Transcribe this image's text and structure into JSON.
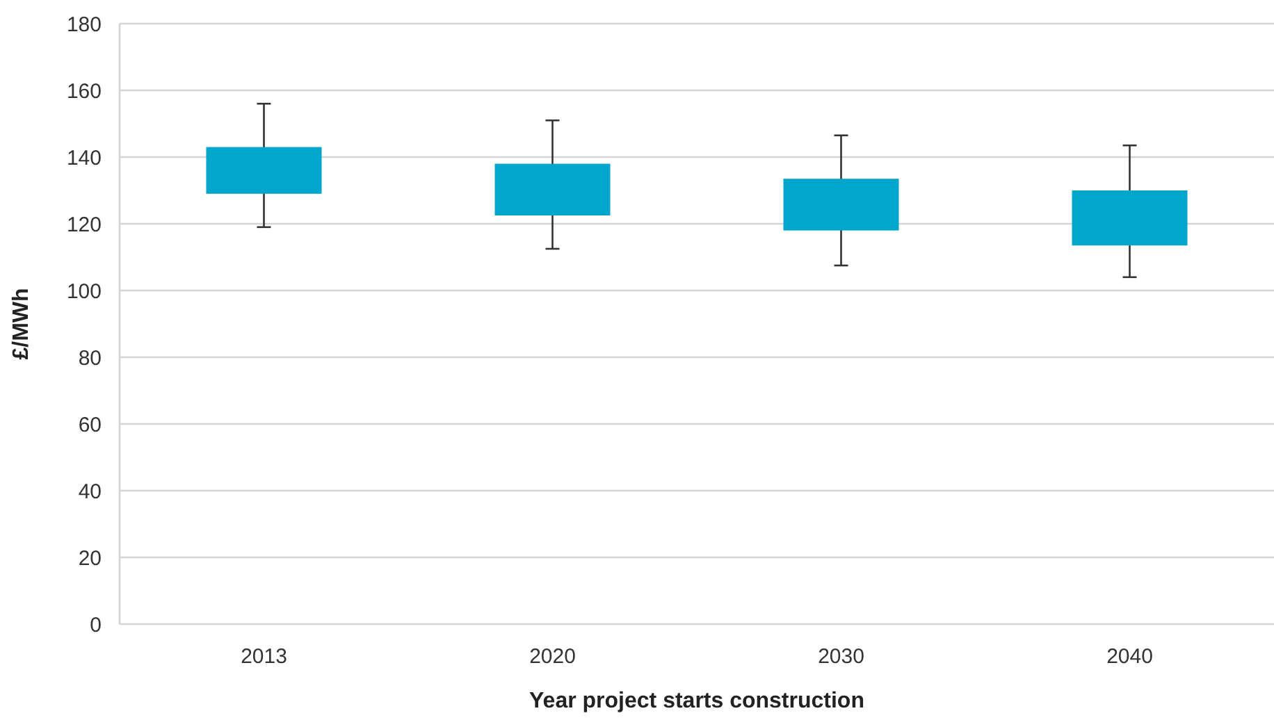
{
  "chart_data": {
    "type": "bar",
    "xlabel": "Year project starts construction",
    "ylabel": "£/MWh",
    "categories": [
      "2013",
      "2020",
      "2030",
      "2040"
    ],
    "base": [
      129,
      122.5,
      118,
      113.5
    ],
    "values": [
      14,
      15.5,
      15.5,
      16.5
    ],
    "errors": [
      [
        119,
        156
      ],
      [
        112.5,
        151
      ],
      [
        107.5,
        146.5
      ],
      [
        104,
        143.5
      ]
    ],
    "color": "#02a6cd",
    "ylim": [
      0,
      180
    ],
    "yticks": [
      0,
      20,
      40,
      60,
      80,
      100,
      120,
      140,
      160,
      180
    ],
    "grid": "y"
  }
}
